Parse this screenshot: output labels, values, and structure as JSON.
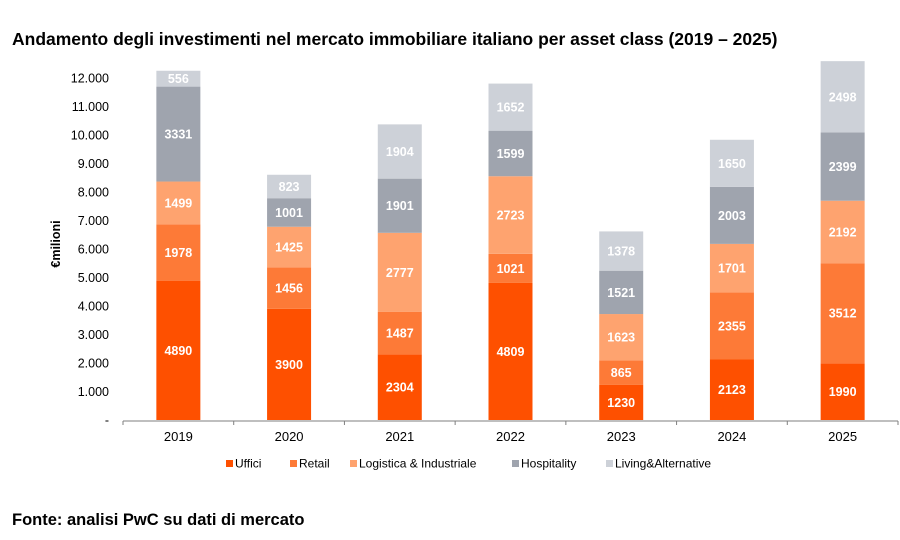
{
  "title": "Andamento degli investimenti nel mercato immobiliare italiano per asset class (2019 – 2025)",
  "source": "Fonte: analisi PwC su dati di mercato",
  "chart_data": {
    "type": "bar",
    "stacked": true,
    "title": "Andamento degli investimenti nel mercato immobiliare italiano per asset class (2019 – 2025)",
    "xlabel": "",
    "ylabel": "€milioni",
    "ylim": [
      0,
      12000
    ],
    "yticks": [
      0,
      1000,
      2000,
      3000,
      4000,
      5000,
      6000,
      7000,
      8000,
      9000,
      10000,
      11000,
      12000
    ],
    "ytick_labels": [
      "-",
      "1.000",
      "2.000",
      "3.000",
      "4.000",
      "5.000",
      "6.000",
      "7.000",
      "8.000",
      "9.000",
      "10.000",
      "11.000",
      "12.000"
    ],
    "grid": false,
    "legend_position": "bottom",
    "categories": [
      "2019",
      "2020",
      "2021",
      "2022",
      "2023",
      "2024",
      "2025"
    ],
    "series": [
      {
        "name": "Uffici",
        "color": "#fe5000",
        "values": [
          4890,
          3900,
          2304,
          4809,
          1230,
          2123,
          1990
        ]
      },
      {
        "name": "Retail",
        "color": "#fd7a37",
        "values": [
          1978,
          1456,
          1487,
          1021,
          865,
          2355,
          3512
        ]
      },
      {
        "name": "Logistica & Industriale",
        "color": "#fea36f",
        "values": [
          1499,
          1425,
          2777,
          2723,
          1623,
          1701,
          2192
        ]
      },
      {
        "name": "Hospitality",
        "color": "#9fa4ae",
        "values": [
          3331,
          1001,
          1901,
          1599,
          1521,
          2003,
          2399
        ]
      },
      {
        "name": "Living&Alternative",
        "color": "#cdd1d8",
        "values": [
          556,
          823,
          1904,
          1652,
          1378,
          1650,
          2498
        ]
      }
    ]
  }
}
